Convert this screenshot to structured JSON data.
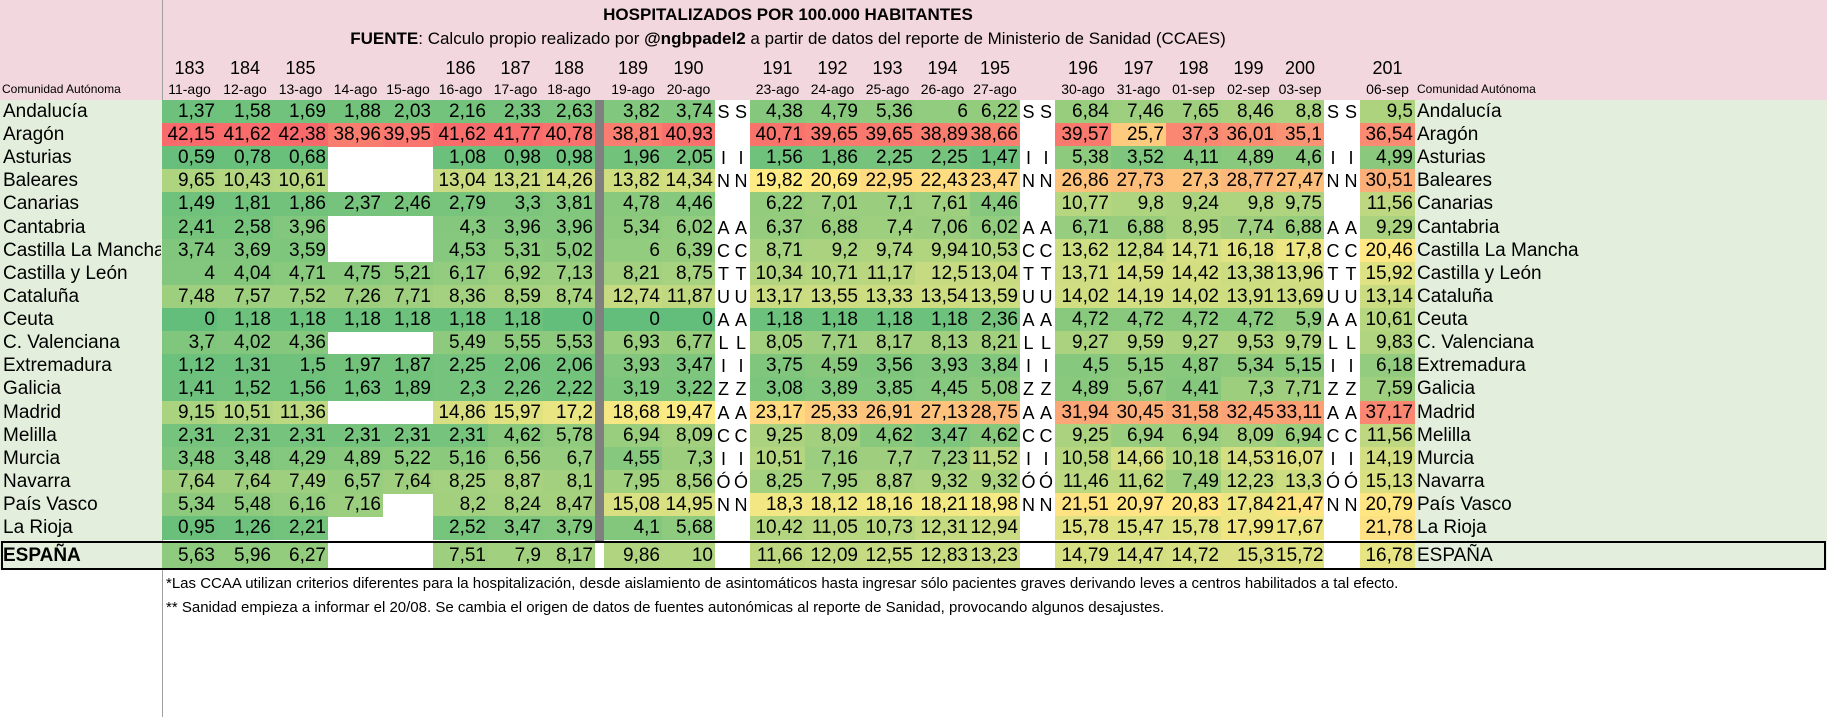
{
  "title": "HOSPITALIZADOS POR 100.000 HABITANTES",
  "source": {
    "label": "FUENTE",
    "text_a": ": Calculo propio realizado por ",
    "handle": "@ngbpadel2",
    "text_b": " a partir de datos del reporte de Ministerio de Sanidad (CCAES)"
  },
  "region_header": "Comunidad Autónoma",
  "columns": [
    {
      "num": "183",
      "date": "11-ago"
    },
    {
      "num": "184",
      "date": "12-ago"
    },
    {
      "num": "185",
      "date": "13-ago"
    },
    {
      "num": "",
      "date": "14-ago"
    },
    {
      "num": "",
      "date": "15-ago"
    },
    {
      "num": "186",
      "date": "16-ago"
    },
    {
      "num": "187",
      "date": "17-ago"
    },
    {
      "num": "188",
      "date": "18-ago"
    },
    {
      "num": "189",
      "date": "19-ago"
    },
    {
      "num": "190",
      "date": "20-ago"
    },
    {
      "num": "191",
      "date": "23-ago"
    },
    {
      "num": "192",
      "date": "24-ago"
    },
    {
      "num": "193",
      "date": "25-ago"
    },
    {
      "num": "194",
      "date": "26-ago"
    },
    {
      "num": "195",
      "date": "27-ago"
    },
    {
      "num": "196",
      "date": "30-ago"
    },
    {
      "num": "197",
      "date": "31-ago"
    },
    {
      "num": "198",
      "date": "01-sep"
    },
    {
      "num": "199",
      "date": "02-sep"
    },
    {
      "num": "200",
      "date": "03-sep"
    },
    {
      "num": "201",
      "date": "06-sep"
    }
  ],
  "weekend_letters": [
    "S",
    "",
    "I",
    "N",
    "",
    "A",
    "C",
    "T",
    "U",
    "A",
    "L",
    "I",
    "Z",
    "A",
    "C",
    "I",
    "Ó",
    "N",
    ""
  ],
  "rows": [
    {
      "region": "Andalucía",
      "values": [
        "1,37",
        "1,58",
        "1,69",
        "1,88",
        "2,03",
        "2,16",
        "2,33",
        "2,63",
        "3,82",
        "3,74",
        "4,38",
        "4,79",
        "5,36",
        "6",
        "6,22",
        "6,84",
        "7,46",
        "7,65",
        "8,46",
        "8,8",
        "9,5"
      ]
    },
    {
      "region": "Aragón",
      "values": [
        "42,15",
        "41,62",
        "42,38",
        "38,96",
        "39,95",
        "41,62",
        "41,77",
        "40,78",
        "38,81",
        "40,93",
        "40,71",
        "39,65",
        "39,65",
        "38,89",
        "38,66",
        "39,57",
        "25,7",
        "37,3",
        "36,01",
        "35,1",
        "36,54"
      ]
    },
    {
      "region": "Asturias",
      "values": [
        "0,59",
        "0,78",
        "0,68",
        "",
        "",
        "1,08",
        "0,98",
        "0,98",
        "1,96",
        "2,05",
        "1,56",
        "1,86",
        "2,25",
        "2,25",
        "1,47",
        "5,38",
        "3,52",
        "4,11",
        "4,89",
        "4,6",
        "4,99"
      ]
    },
    {
      "region": "Baleares",
      "values": [
        "9,65",
        "10,43",
        "10,61",
        "",
        "",
        "13,04",
        "13,21",
        "14,26",
        "13,82",
        "14,34",
        "19,82",
        "20,69",
        "22,95",
        "22,43",
        "23,47",
        "26,86",
        "27,73",
        "27,3",
        "28,77",
        "27,47",
        "30,51"
      ]
    },
    {
      "region": "Canarias",
      "values": [
        "1,49",
        "1,81",
        "1,86",
        "2,37",
        "2,46",
        "2,79",
        "3,3",
        "3,81",
        "4,78",
        "4,46",
        "6,22",
        "7,01",
        "7,1",
        "7,61",
        "4,46",
        "10,77",
        "9,8",
        "9,24",
        "9,8",
        "9,75",
        "11,56"
      ]
    },
    {
      "region": "Cantabria",
      "values": [
        "2,41",
        "2,58",
        "3,96",
        "",
        "",
        "4,3",
        "3,96",
        "3,96",
        "5,34",
        "6,02",
        "6,37",
        "6,88",
        "7,4",
        "7,06",
        "6,02",
        "6,71",
        "6,88",
        "8,95",
        "7,74",
        "6,88",
        "9,29"
      ]
    },
    {
      "region": "Castilla La Mancha",
      "values": [
        "3,74",
        "3,69",
        "3,59",
        "",
        "",
        "4,53",
        "5,31",
        "5,02",
        "6",
        "6,39",
        "8,71",
        "9,2",
        "9,74",
        "9,94",
        "10,53",
        "13,62",
        "12,84",
        "14,71",
        "16,18",
        "17,8",
        "20,46"
      ]
    },
    {
      "region": "Castilla y León",
      "values": [
        "4",
        "4,04",
        "4,71",
        "4,75",
        "5,21",
        "6,17",
        "6,92",
        "7,13",
        "8,21",
        "8,75",
        "10,34",
        "10,71",
        "11,17",
        "12,5",
        "13,04",
        "13,71",
        "14,59",
        "14,42",
        "13,38",
        "13,96",
        "15,92"
      ]
    },
    {
      "region": "Cataluña",
      "values": [
        "7,48",
        "7,57",
        "7,52",
        "7,26",
        "7,71",
        "8,36",
        "8,59",
        "8,74",
        "12,74",
        "11,87",
        "13,17",
        "13,55",
        "13,33",
        "13,54",
        "13,59",
        "14,02",
        "14,19",
        "14,02",
        "13,91",
        "13,69",
        "13,14"
      ]
    },
    {
      "region": "Ceuta",
      "values": [
        "0",
        "1,18",
        "1,18",
        "1,18",
        "1,18",
        "1,18",
        "1,18",
        "0",
        "0",
        "0",
        "1,18",
        "1,18",
        "1,18",
        "1,18",
        "2,36",
        "4,72",
        "4,72",
        "4,72",
        "4,72",
        "5,9",
        "10,61"
      ]
    },
    {
      "region": "C. Valenciana",
      "values": [
        "3,7",
        "4,02",
        "4,36",
        "",
        "",
        "5,49",
        "5,55",
        "5,53",
        "6,93",
        "6,77",
        "8,05",
        "7,71",
        "8,17",
        "8,13",
        "8,21",
        "9,27",
        "9,59",
        "9,27",
        "9,53",
        "9,79",
        "9,83"
      ]
    },
    {
      "region": "Extremadura",
      "values": [
        "1,12",
        "1,31",
        "1,5",
        "1,97",
        "1,87",
        "2,25",
        "2,06",
        "2,06",
        "3,93",
        "3,47",
        "3,75",
        "4,59",
        "3,56",
        "3,93",
        "3,84",
        "4,5",
        "5,15",
        "4,87",
        "5,34",
        "5,15",
        "6,18"
      ]
    },
    {
      "region": "Galicia",
      "values": [
        "1,41",
        "1,52",
        "1,56",
        "1,63",
        "1,89",
        "2,3",
        "2,26",
        "2,22",
        "3,19",
        "3,22",
        "3,08",
        "3,89",
        "3,85",
        "4,45",
        "5,08",
        "4,89",
        "5,67",
        "4,41",
        "7,3",
        "7,71",
        "7,59"
      ]
    },
    {
      "region": "Madrid",
      "values": [
        "9,15",
        "10,51",
        "11,36",
        "",
        "",
        "14,86",
        "15,97",
        "17,2",
        "18,68",
        "19,47",
        "23,17",
        "25,33",
        "26,91",
        "27,13",
        "28,75",
        "31,94",
        "30,45",
        "31,58",
        "32,45",
        "33,11",
        "37,17"
      ]
    },
    {
      "region": "Melilla",
      "values": [
        "2,31",
        "2,31",
        "2,31",
        "2,31",
        "2,31",
        "2,31",
        "4,62",
        "5,78",
        "6,94",
        "8,09",
        "9,25",
        "8,09",
        "4,62",
        "3,47",
        "4,62",
        "9,25",
        "6,94",
        "6,94",
        "8,09",
        "6,94",
        "11,56"
      ]
    },
    {
      "region": "Murcia",
      "values": [
        "3,48",
        "3,48",
        "4,29",
        "4,89",
        "5,22",
        "5,16",
        "6,56",
        "6,7",
        "4,55",
        "7,3",
        "10,51",
        "7,16",
        "7,7",
        "7,23",
        "11,52",
        "10,58",
        "14,66",
        "10,18",
        "14,53",
        "16,07",
        "14,19"
      ]
    },
    {
      "region": "Navarra",
      "values": [
        "7,64",
        "7,64",
        "7,49",
        "6,57",
        "7,64",
        "8,25",
        "8,87",
        "8,1",
        "7,95",
        "8,56",
        "8,25",
        "7,95",
        "8,87",
        "9,32",
        "9,32",
        "11,46",
        "11,62",
        "7,49",
        "12,23",
        "13,3",
        "15,13"
      ]
    },
    {
      "region": "País Vasco",
      "values": [
        "5,34",
        "5,48",
        "6,16",
        "7,16",
        "",
        "8,2",
        "8,24",
        "8,47",
        "15,08",
        "14,95",
        "18,3",
        "18,12",
        "18,16",
        "18,21",
        "18,98",
        "21,51",
        "20,97",
        "20,83",
        "17,84",
        "21,47",
        "20,79"
      ]
    },
    {
      "region": "La Rioja",
      "values": [
        "0,95",
        "1,26",
        "2,21",
        "",
        "",
        "2,52",
        "3,47",
        "3,79",
        "4,1",
        "5,68",
        "10,42",
        "11,05",
        "10,73",
        "12,31",
        "12,94",
        "15,78",
        "15,47",
        "15,78",
        "17,99",
        "17,67",
        "21,78"
      ]
    }
  ],
  "total_row": {
    "region": "ESPAÑA",
    "values": [
      "5,63",
      "5,96",
      "6,27",
      "",
      "",
      "7,51",
      "7,9",
      "8,17",
      "9,86",
      "10",
      "11,66",
      "12,09",
      "12,55",
      "12,83",
      "13,23",
      "14,79",
      "14,47",
      "14,72",
      "15,3",
      "15,72",
      "16,78"
    ]
  },
  "footnotes": [
    "*Las CCAA utilizan criterios diferentes para la hospitalización, desde aislamiento de asintomáticos hasta ingresar sólo pacientes graves derivando leves a centros habilitados a tal efecto.",
    "** Sanidad empieza a informar el 20/08. Se cambia el origen de datos de fuentes autonómicas al reporte de Sanidad, provocando algunos desajustes."
  ],
  "colors": {
    "header_bg": "#f2d7df",
    "region_bg": "#e3efdc",
    "gap_bg": "#ffffff",
    "divider": "#808080",
    "scale_low": "#63be7b",
    "scale_mid": "#ffeb84",
    "scale_high": "#f8696b"
  }
}
